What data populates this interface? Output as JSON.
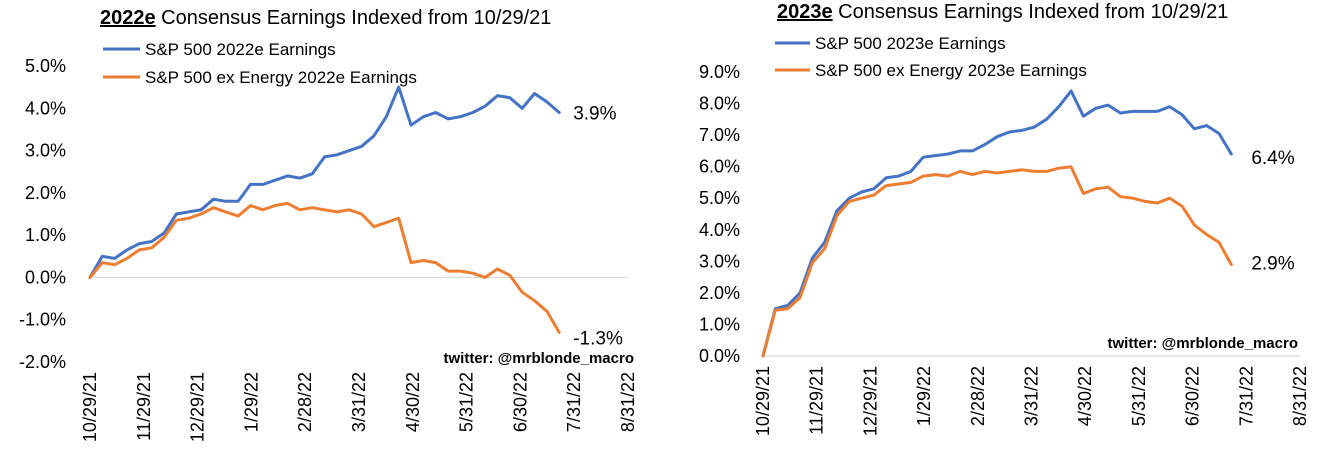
{
  "colors": {
    "blue": "#4472C4",
    "orange": "#ED7D31",
    "zero_line": "#D9D9D9"
  },
  "chart_data": [
    {
      "type": "line",
      "title_prefix": "2022e",
      "title_rest": " Consensus Earnings Indexed from 10/29/21",
      "credit": "twitter: @mrblonde_macro",
      "ylim": [
        -2.0,
        5.0
      ],
      "y_ticks": [
        "5.0%",
        "4.0%",
        "3.0%",
        "2.0%",
        "1.0%",
        "0.0%",
        "-1.0%",
        "-2.0%"
      ],
      "x_ticks": [
        "10/29/21",
        "11/29/21",
        "12/29/21",
        "1/29/22",
        "2/28/22",
        "3/31/22",
        "4/30/22",
        "5/31/22",
        "6/30/22",
        "7/31/22",
        "8/31/22"
      ],
      "grid": false,
      "legend_position": "top-left",
      "series": [
        {
          "name": "S&P 500 2022e Earnings",
          "color": "blue",
          "end_label": "3.9%",
          "values": [
            0.0,
            0.5,
            0.45,
            0.65,
            0.8,
            0.85,
            1.05,
            1.5,
            1.55,
            1.6,
            1.85,
            1.8,
            1.8,
            2.2,
            2.2,
            2.3,
            2.4,
            2.35,
            2.45,
            2.85,
            2.9,
            3.0,
            3.1,
            3.35,
            3.8,
            4.5,
            3.6,
            3.8,
            3.9,
            3.75,
            3.8,
            3.9,
            4.05,
            4.3,
            4.25,
            4.0,
            4.35,
            4.15,
            3.9
          ]
        },
        {
          "name": "S&P 500 ex Energy 2022e Earnings",
          "color": "orange",
          "end_label": "-1.3%",
          "values": [
            0.0,
            0.35,
            0.3,
            0.45,
            0.65,
            0.7,
            0.95,
            1.35,
            1.4,
            1.5,
            1.65,
            1.55,
            1.45,
            1.7,
            1.6,
            1.7,
            1.75,
            1.6,
            1.65,
            1.6,
            1.55,
            1.6,
            1.5,
            1.2,
            1.3,
            1.4,
            0.35,
            0.4,
            0.35,
            0.15,
            0.15,
            0.1,
            0.0,
            0.2,
            0.05,
            -0.35,
            -0.55,
            -0.8,
            -1.3
          ]
        }
      ]
    },
    {
      "type": "line",
      "title_prefix": "2023e",
      "title_rest": " Consensus Earnings Indexed from 10/29/21",
      "credit": "twitter: @mrblonde_macro",
      "ylim": [
        0.0,
        9.0
      ],
      "y_ticks": [
        "9.0%",
        "8.0%",
        "7.0%",
        "6.0%",
        "5.0%",
        "4.0%",
        "3.0%",
        "2.0%",
        "1.0%",
        "0.0%"
      ],
      "x_ticks": [
        "10/29/21",
        "11/29/21",
        "12/29/21",
        "1/29/22",
        "2/28/22",
        "3/31/22",
        "4/30/22",
        "5/31/22",
        "6/30/22",
        "7/31/22",
        "8/31/22"
      ],
      "grid": false,
      "legend_position": "top-left",
      "series": [
        {
          "name": "S&P 500 2023e Earnings",
          "color": "blue",
          "end_label": "6.4%",
          "values": [
            0.0,
            1.5,
            1.6,
            2.0,
            3.1,
            3.6,
            4.6,
            5.0,
            5.2,
            5.3,
            5.65,
            5.7,
            5.85,
            6.3,
            6.35,
            6.4,
            6.5,
            6.5,
            6.7,
            6.95,
            7.1,
            7.15,
            7.25,
            7.5,
            7.9,
            8.4,
            7.6,
            7.85,
            7.95,
            7.7,
            7.75,
            7.75,
            7.75,
            7.9,
            7.65,
            7.2,
            7.3,
            7.05,
            6.4
          ]
        },
        {
          "name": "S&P 500 ex Energy 2023e Earnings",
          "color": "orange",
          "end_label": "2.9%",
          "values": [
            0.0,
            1.45,
            1.5,
            1.85,
            2.95,
            3.4,
            4.45,
            4.9,
            5.0,
            5.1,
            5.4,
            5.45,
            5.5,
            5.7,
            5.75,
            5.7,
            5.85,
            5.75,
            5.85,
            5.8,
            5.85,
            5.9,
            5.85,
            5.85,
            5.95,
            6.0,
            5.15,
            5.3,
            5.35,
            5.05,
            5.0,
            4.9,
            4.85,
            5.0,
            4.75,
            4.15,
            3.85,
            3.6,
            2.9
          ]
        }
      ]
    }
  ]
}
